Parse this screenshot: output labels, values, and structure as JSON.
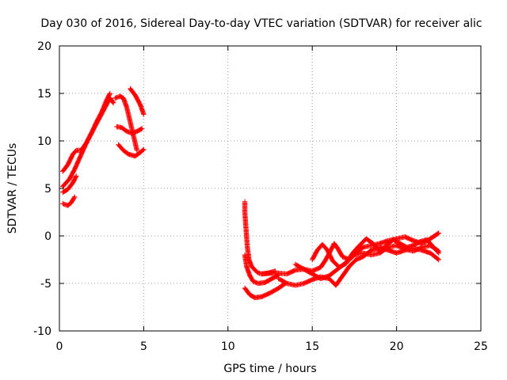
{
  "chart_data": {
    "type": "scatter",
    "title": "Day 030 of 2016, Sidereal Day-to-day VTEC variation (SDTVAR) for receiver alic",
    "xlabel": "GPS time / hours",
    "ylabel": "SDTVAR / TECUs",
    "xlim": [
      0,
      25
    ],
    "ylim": [
      -10,
      20
    ],
    "xticks": [
      "0",
      "5",
      "10",
      "15",
      "20",
      "25"
    ],
    "yticks": [
      "-10",
      "-5",
      "0",
      "5",
      "10",
      "15",
      "20"
    ],
    "grid": true,
    "marker": "+",
    "color": "#ff0000",
    "series": [
      {
        "values": [
          [
            0.2,
            6.8
          ],
          [
            0.5,
            7.5
          ],
          [
            0.8,
            8.6
          ],
          [
            1.0,
            9.0
          ],
          [
            1.3,
            9.0
          ],
          [
            1.6,
            9.8
          ],
          [
            1.9,
            10.8
          ],
          [
            2.2,
            12.0
          ],
          [
            2.5,
            13.0
          ],
          [
            2.8,
            14.3
          ],
          [
            3.0,
            15.0
          ]
        ]
      },
      {
        "values": [
          [
            0.2,
            5.2
          ],
          [
            0.6,
            6.0
          ],
          [
            0.9,
            7.0
          ],
          [
            1.2,
            8.2
          ],
          [
            1.5,
            9.4
          ],
          [
            1.8,
            10.5
          ],
          [
            2.1,
            11.5
          ],
          [
            2.4,
            12.5
          ],
          [
            2.7,
            13.5
          ],
          [
            3.0,
            14.5
          ],
          [
            3.2,
            14.0
          ]
        ]
      },
      {
        "values": [
          [
            0.2,
            4.6
          ],
          [
            0.5,
            4.9
          ],
          [
            0.8,
            5.6
          ],
          [
            1.0,
            6.3
          ]
        ]
      },
      {
        "values": [
          [
            0.2,
            3.4
          ],
          [
            0.5,
            3.2
          ],
          [
            0.7,
            3.5
          ],
          [
            0.9,
            4.1
          ]
        ]
      },
      {
        "values": [
          [
            3.3,
            14.5
          ],
          [
            3.6,
            14.7
          ],
          [
            3.8,
            14.5
          ],
          [
            4.0,
            13.5
          ],
          [
            4.2,
            12.0
          ],
          [
            4.4,
            10.5
          ],
          [
            4.6,
            9.0
          ]
        ]
      },
      {
        "values": [
          [
            3.4,
            11.5
          ],
          [
            3.7,
            11.4
          ],
          [
            4.0,
            11.0
          ],
          [
            4.3,
            10.8
          ],
          [
            4.6,
            11.0
          ],
          [
            4.9,
            11.3
          ]
        ]
      },
      {
        "values": [
          [
            3.5,
            9.6
          ],
          [
            3.8,
            9.0
          ],
          [
            4.1,
            8.6
          ],
          [
            4.5,
            8.4
          ],
          [
            4.8,
            8.8
          ],
          [
            5.0,
            9.1
          ]
        ]
      },
      {
        "values": [
          [
            4.2,
            15.5
          ],
          [
            4.5,
            14.8
          ],
          [
            4.8,
            13.8
          ],
          [
            5.0,
            12.8
          ]
        ]
      },
      {
        "values": [
          [
            11.0,
            3.6
          ],
          [
            11.0,
            2.5
          ],
          [
            11.05,
            1.2
          ],
          [
            11.1,
            0.0
          ],
          [
            11.15,
            -1.2
          ],
          [
            11.25,
            -2.5
          ],
          [
            11.4,
            -3.2
          ],
          [
            11.6,
            -3.6
          ],
          [
            11.8,
            -3.9
          ],
          [
            12.0,
            -4.0
          ],
          [
            12.4,
            -3.9
          ],
          [
            12.8,
            -3.7
          ]
        ]
      },
      {
        "values": [
          [
            11.0,
            -2.0
          ],
          [
            11.1,
            -3.2
          ],
          [
            11.3,
            -4.2
          ],
          [
            11.5,
            -4.8
          ],
          [
            11.8,
            -5.0
          ],
          [
            12.2,
            -4.9
          ],
          [
            12.6,
            -4.5
          ],
          [
            13.0,
            -4.1
          ]
        ]
      },
      {
        "values": [
          [
            11.0,
            -5.5
          ],
          [
            11.3,
            -6.2
          ],
          [
            11.6,
            -6.5
          ],
          [
            12.0,
            -6.4
          ],
          [
            12.5,
            -6.0
          ],
          [
            13.0,
            -5.5
          ],
          [
            13.4,
            -5.0
          ]
        ]
      },
      {
        "values": [
          [
            12.0,
            -4.0
          ],
          [
            12.8,
            -3.9
          ],
          [
            13.5,
            -4.0
          ],
          [
            14.0,
            -3.6
          ],
          [
            14.5,
            -3.5
          ],
          [
            15.0,
            -3.7
          ],
          [
            15.5,
            -3.3
          ],
          [
            15.8,
            -2.5
          ],
          [
            16.1,
            -1.5
          ],
          [
            16.3,
            -0.8
          ],
          [
            16.5,
            -1.3
          ],
          [
            16.8,
            -2.2
          ],
          [
            17.2,
            -2.5
          ],
          [
            17.6,
            -1.8
          ],
          [
            18.0,
            -1.2
          ],
          [
            18.5,
            -1.0
          ],
          [
            19.0,
            -0.8
          ],
          [
            19.5,
            -0.5
          ],
          [
            20.0,
            -0.3
          ],
          [
            20.5,
            -0.1
          ],
          [
            21.0,
            -0.5
          ],
          [
            21.5,
            -0.8
          ],
          [
            22.0,
            -0.3
          ],
          [
            22.5,
            0.3
          ]
        ]
      },
      {
        "values": [
          [
            13.0,
            -4.5
          ],
          [
            13.5,
            -5.0
          ],
          [
            14.0,
            -5.2
          ],
          [
            14.5,
            -5.0
          ],
          [
            15.0,
            -4.6
          ],
          [
            15.5,
            -4.3
          ],
          [
            16.0,
            -4.5
          ],
          [
            16.4,
            -5.2
          ],
          [
            16.8,
            -4.2
          ],
          [
            17.2,
            -3.2
          ],
          [
            17.6,
            -2.5
          ],
          [
            18.0,
            -2.2
          ],
          [
            18.5,
            -1.5
          ],
          [
            19.0,
            -1.2
          ],
          [
            19.5,
            -1.5
          ],
          [
            20.0,
            -1.8
          ],
          [
            20.5,
            -1.5
          ],
          [
            21.0,
            -1.3
          ],
          [
            21.5,
            -1.5
          ],
          [
            22.0,
            -1.8
          ],
          [
            22.5,
            -2.5
          ]
        ]
      },
      {
        "values": [
          [
            14.0,
            -3.0
          ],
          [
            14.5,
            -3.5
          ],
          [
            15.0,
            -4.0
          ],
          [
            15.5,
            -4.5
          ],
          [
            16.0,
            -4.2
          ],
          [
            16.5,
            -3.5
          ],
          [
            17.0,
            -2.8
          ],
          [
            17.5,
            -2.0
          ],
          [
            18.0,
            -1.8
          ],
          [
            18.5,
            -2.0
          ],
          [
            19.0,
            -1.8
          ],
          [
            19.5,
            -1.2
          ],
          [
            20.0,
            -1.0
          ],
          [
            20.5,
            -1.4
          ],
          [
            21.0,
            -1.6
          ],
          [
            21.5,
            -1.2
          ],
          [
            22.0,
            -1.0
          ],
          [
            22.5,
            -1.6
          ]
        ]
      },
      {
        "values": [
          [
            15.0,
            -2.5
          ],
          [
            15.3,
            -1.5
          ],
          [
            15.6,
            -0.9
          ],
          [
            15.9,
            -1.5
          ],
          [
            16.2,
            -2.6
          ],
          [
            16.6,
            -3.3
          ],
          [
            17.0,
            -2.9
          ],
          [
            17.4,
            -1.8
          ],
          [
            17.8,
            -1.0
          ],
          [
            18.2,
            -0.3
          ],
          [
            18.6,
            -0.8
          ],
          [
            19.0,
            -1.6
          ],
          [
            19.4,
            -1.0
          ],
          [
            19.8,
            -0.4
          ],
          [
            20.2,
            -0.8
          ],
          [
            20.6,
            -1.2
          ],
          [
            21.0,
            -1.0
          ],
          [
            21.4,
            -0.6
          ],
          [
            21.8,
            -0.4
          ],
          [
            22.2,
            -1.2
          ],
          [
            22.5,
            -1.8
          ]
        ]
      }
    ]
  }
}
